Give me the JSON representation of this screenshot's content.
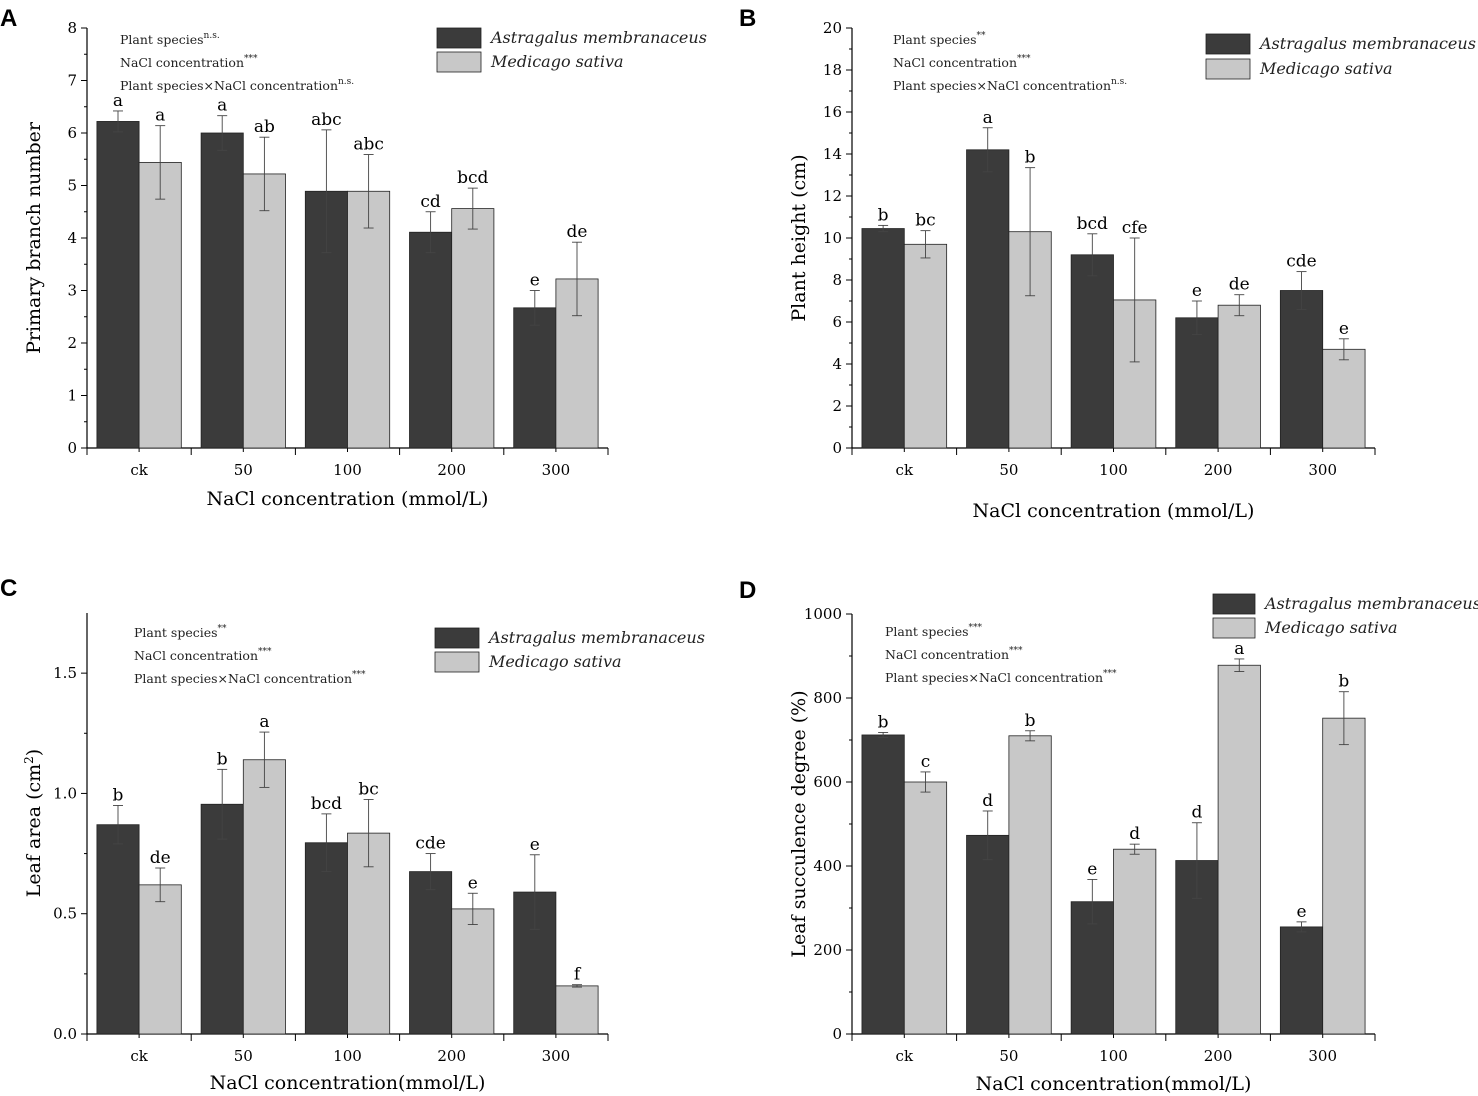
{
  "colors": {
    "series1": "#3b3b3b",
    "series2": "#c8c8c8",
    "axis": "#000000"
  },
  "chart_data": [
    {
      "panel": "A",
      "type": "bar",
      "categories": [
        "ck",
        "50",
        "100",
        "200",
        "300"
      ],
      "xlabel": "NaCl concentration (mmol/L)",
      "ylabel": "Primary branch number",
      "ylim": [
        0,
        8
      ],
      "yticks": [
        "0",
        "1",
        "2",
        "3",
        "4",
        "5",
        "6",
        "7",
        "8"
      ],
      "legend_position": "top-right",
      "annotations": [
        {
          "text": "Plant species",
          "sup": "n.s."
        },
        {
          "text": "NaCl concentration",
          "sup": "***"
        },
        {
          "text": "Plant species×NaCl concentration",
          "sup": "n.s."
        }
      ],
      "series": [
        {
          "name": "Astragalus membranaceus",
          "values": [
            6.22,
            6.0,
            4.89,
            4.11,
            2.67
          ],
          "errors": [
            0.2,
            0.33,
            1.17,
            0.39,
            0.33
          ],
          "letters": [
            "a",
            "a",
            "abc",
            "cd",
            "e"
          ]
        },
        {
          "name": "Medicago sativa",
          "values": [
            5.44,
            5.22,
            4.89,
            4.56,
            3.22
          ],
          "errors": [
            0.7,
            0.7,
            0.7,
            0.39,
            0.7
          ],
          "letters": [
            "a",
            "ab",
            "abc",
            "bcd",
            "de"
          ]
        }
      ]
    },
    {
      "panel": "B",
      "type": "bar",
      "categories": [
        "ck",
        "50",
        "100",
        "200",
        "300"
      ],
      "xlabel": "NaCl concentration (mmol/L)",
      "ylabel": "Plant height (cm)",
      "ylim": [
        0,
        20
      ],
      "yticks": [
        "0",
        "2",
        "4",
        "6",
        "8",
        "10",
        "12",
        "14",
        "16",
        "18",
        "20"
      ],
      "legend_position": "top-right",
      "annotations": [
        {
          "text": "Plant species",
          "sup": "**"
        },
        {
          "text": "NaCl concentration",
          "sup": "***"
        },
        {
          "text": "Plant species×NaCl concentration",
          "sup": "n.s."
        }
      ],
      "series": [
        {
          "name": "Astragalus membranaceus",
          "values": [
            10.45,
            14.2,
            9.2,
            6.2,
            7.5
          ],
          "errors": [
            0.15,
            1.05,
            1.0,
            0.8,
            0.9
          ],
          "letters": [
            "b",
            "a",
            "bcd",
            "e",
            "cde"
          ]
        },
        {
          "name": "Medicago sativa",
          "values": [
            9.7,
            10.3,
            7.05,
            6.8,
            4.7
          ],
          "errors": [
            0.65,
            3.05,
            2.95,
            0.5,
            0.5
          ],
          "letters": [
            "bc",
            "b",
            "cfe",
            "de",
            "e"
          ]
        }
      ]
    },
    {
      "panel": "C",
      "type": "bar",
      "categories": [
        "ck",
        "50",
        "100",
        "200",
        "300"
      ],
      "xlabel": "NaCl concentration(mmol/L)",
      "ylabel": "Leaf area (cm",
      "ylabel_sup": "2",
      "ylabel_end": ")",
      "ylim": [
        0,
        1.75
      ],
      "yticks": [
        "0.0",
        "0.5",
        "1.0",
        "1.5"
      ],
      "yticks_values": [
        0,
        0.5,
        1.0,
        1.5
      ],
      "legend_position": "top-right",
      "annotations": [
        {
          "text": "Plant species",
          "sup": "**"
        },
        {
          "text": "NaCl concentration",
          "sup": "***"
        },
        {
          "text": "Plant species×NaCl concentration",
          "sup": "***"
        }
      ],
      "series": [
        {
          "name": "Astragalus membranaceus",
          "values": [
            0.87,
            0.955,
            0.795,
            0.675,
            0.59
          ],
          "errors": [
            0.08,
            0.145,
            0.12,
            0.075,
            0.155
          ],
          "letters": [
            "b",
            "b",
            "bcd",
            "cde",
            "e"
          ]
        },
        {
          "name": "Medicago sativa",
          "values": [
            0.62,
            1.14,
            0.835,
            0.52,
            0.2
          ],
          "errors": [
            0.07,
            0.115,
            0.14,
            0.065,
            0.005
          ],
          "letters": [
            "de",
            "a",
            "bc",
            "e",
            "f"
          ]
        }
      ]
    },
    {
      "panel": "D",
      "type": "bar",
      "categories": [
        "ck",
        "50",
        "100",
        "200",
        "300"
      ],
      "xlabel": "NaCl concentration(mmol/L)",
      "ylabel": "Leaf succulence degree (%)",
      "ylim": [
        0,
        1000
      ],
      "yticks": [
        "0",
        "200",
        "400",
        "600",
        "800",
        "1000"
      ],
      "legend_position": "top-right",
      "annotations": [
        {
          "text": "Plant species",
          "sup": "***"
        },
        {
          "text": "NaCl concentration",
          "sup": "***"
        },
        {
          "text": "Plant species×NaCl concentration",
          "sup": "***"
        }
      ],
      "series": [
        {
          "name": "Astragalus membranaceus",
          "values": [
            712,
            473,
            315,
            413,
            255
          ],
          "errors": [
            6,
            58,
            53,
            90,
            12
          ],
          "letters": [
            "b",
            "d",
            "e",
            "d",
            "e"
          ]
        },
        {
          "name": "Medicago sativa",
          "values": [
            600,
            710,
            440,
            878,
            752
          ],
          "errors": [
            24,
            12,
            12,
            15,
            63
          ],
          "letters": [
            "c",
            "b",
            "d",
            "a",
            "b"
          ]
        }
      ]
    }
  ]
}
